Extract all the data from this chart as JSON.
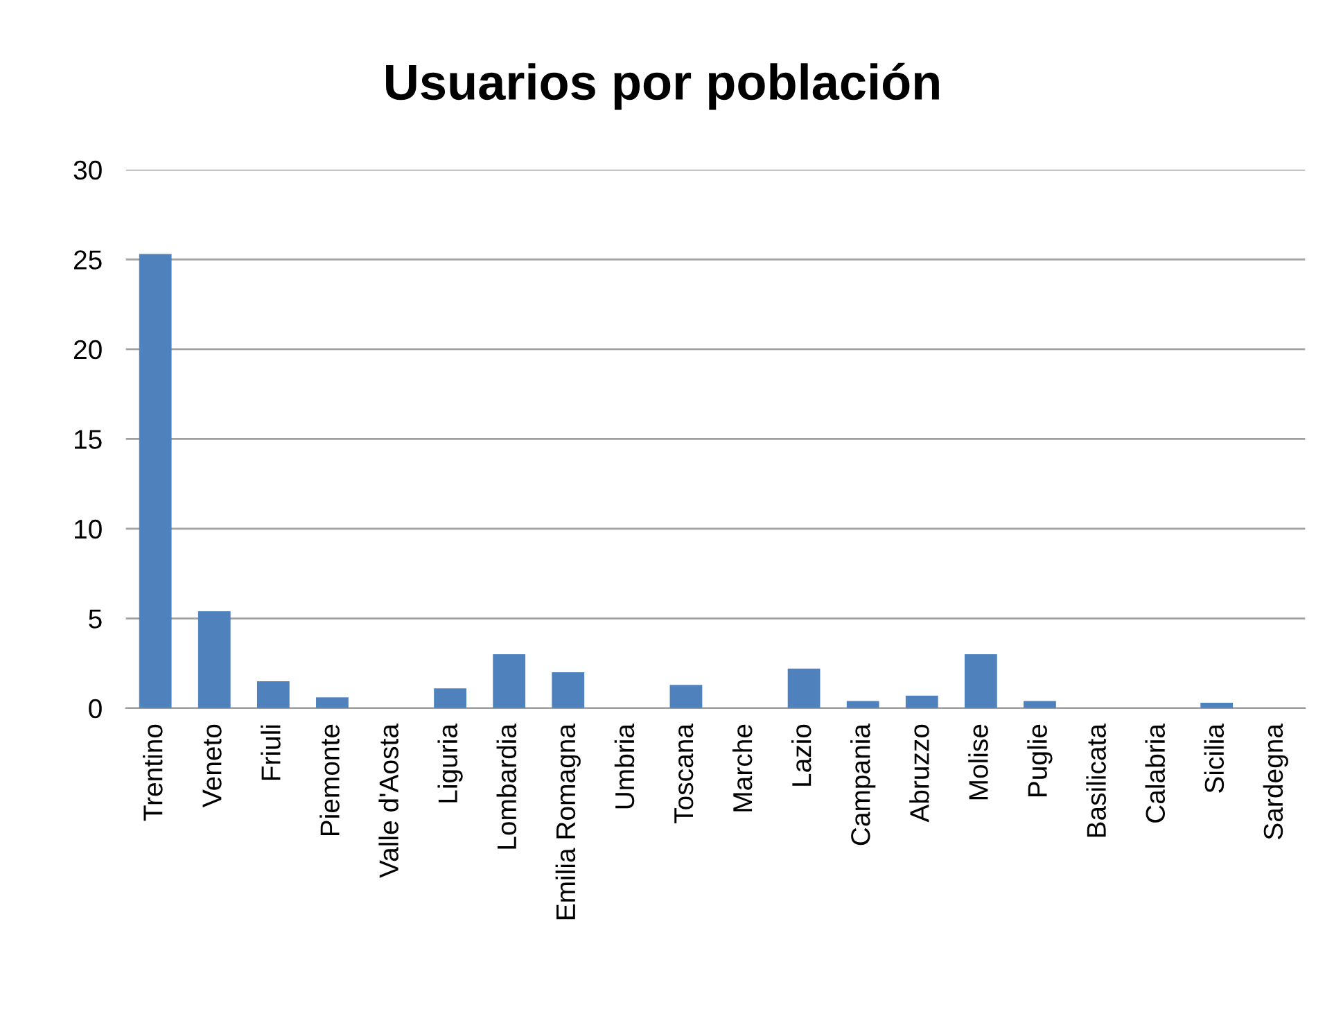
{
  "chart_data": {
    "type": "bar",
    "title": "Usuarios por población",
    "categories": [
      "Trentino",
      "Veneto",
      "Friuli",
      "Piemonte",
      "Valle d'Aosta",
      "Liguria",
      "Lombardia",
      "Emilia Romagna",
      "Umbria",
      "Toscana",
      "Marche",
      "Lazio",
      "Campania",
      "Abruzzo",
      "Molise",
      "Puglie",
      "Basilicata",
      "Calabria",
      "Sicilia",
      "Sardegna"
    ],
    "values": [
      25.3,
      5.4,
      1.5,
      0.6,
      0,
      1.1,
      3.0,
      2.0,
      0,
      1.3,
      0,
      2.2,
      0.4,
      0.7,
      3.0,
      0.4,
      0,
      0,
      0.3,
      0
    ],
    "color": "#4f81bd",
    "ylim": [
      0,
      30
    ],
    "yticks": [
      0,
      5,
      10,
      15,
      20,
      25,
      30
    ],
    "grid": "y"
  }
}
